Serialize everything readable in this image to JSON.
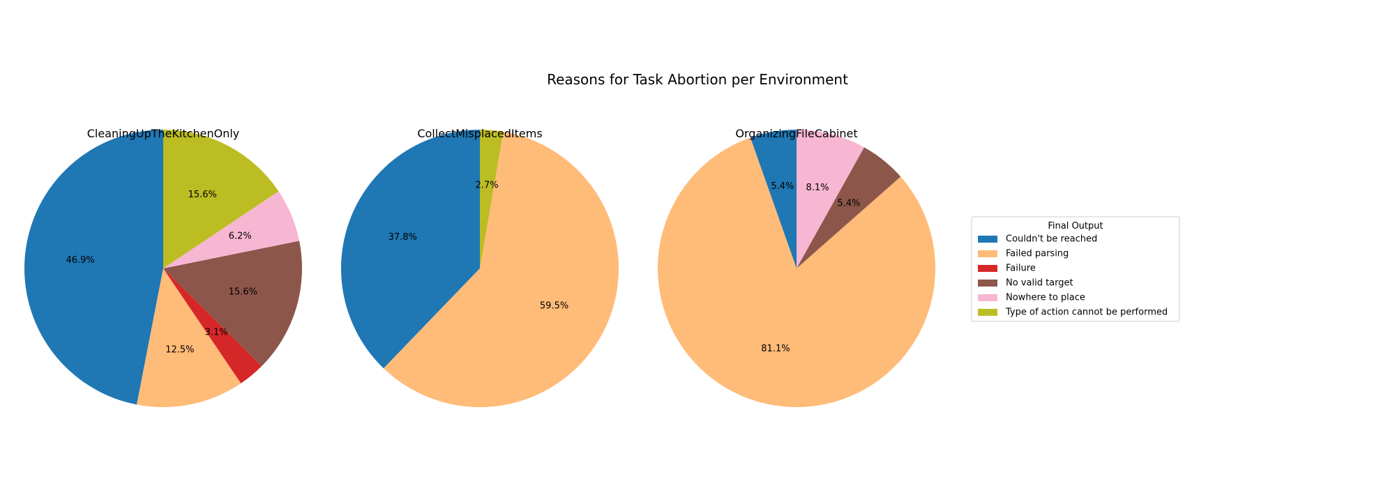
{
  "chart_data": {
    "type": "pie",
    "title": "Reasons for Task Abortion per Environment",
    "legend": {
      "title": "Final Output",
      "placement": "right",
      "entries": [
        {
          "label": "Couldn't be reached",
          "color": "#1f77b4"
        },
        {
          "label": "Failed parsing",
          "color": "#ffbb78"
        },
        {
          "label": "Failure",
          "color": "#d62728"
        },
        {
          "label": "No valid target",
          "color": "#8c564b"
        },
        {
          "label": "Nowhere to place",
          "color": "#f7b6d2"
        },
        {
          "label": "Type of action cannot be performed",
          "color": "#bcbd22"
        }
      ]
    },
    "start_angle_deg": 90,
    "counterclock": true,
    "pies": [
      {
        "title": "CleaningUpTheKitchenOnly",
        "slices": [
          {
            "label": "Couldn't be reached",
            "value": 46.9,
            "pct_label": "46.9%"
          },
          {
            "label": "Failed parsing",
            "value": 12.5,
            "pct_label": "12.5%"
          },
          {
            "label": "Failure",
            "value": 3.1,
            "pct_label": "3.1%"
          },
          {
            "label": "No valid target",
            "value": 15.6,
            "pct_label": "15.6%"
          },
          {
            "label": "Nowhere to place",
            "value": 6.2,
            "pct_label": "6.2%"
          },
          {
            "label": "Type of action cannot be performed",
            "value": 15.6,
            "pct_label": "15.6%"
          }
        ]
      },
      {
        "title": "CollectMisplacedItems",
        "slices": [
          {
            "label": "Couldn't be reached",
            "value": 37.8,
            "pct_label": "37.8%"
          },
          {
            "label": "Failed parsing",
            "value": 59.5,
            "pct_label": "59.5%"
          },
          {
            "label": "Type of action cannot be performed",
            "value": 2.7,
            "pct_label": "2.7%"
          }
        ]
      },
      {
        "title": "OrganizingFileCabinet",
        "slices": [
          {
            "label": "Couldn't be reached",
            "value": 5.4,
            "pct_label": "5.4%"
          },
          {
            "label": "Failed parsing",
            "value": 81.1,
            "pct_label": "81.1%"
          },
          {
            "label": "No valid target",
            "value": 5.4,
            "pct_label": "5.4%"
          },
          {
            "label": "Nowhere to place",
            "value": 8.1,
            "pct_label": "8.1%"
          }
        ]
      }
    ]
  }
}
